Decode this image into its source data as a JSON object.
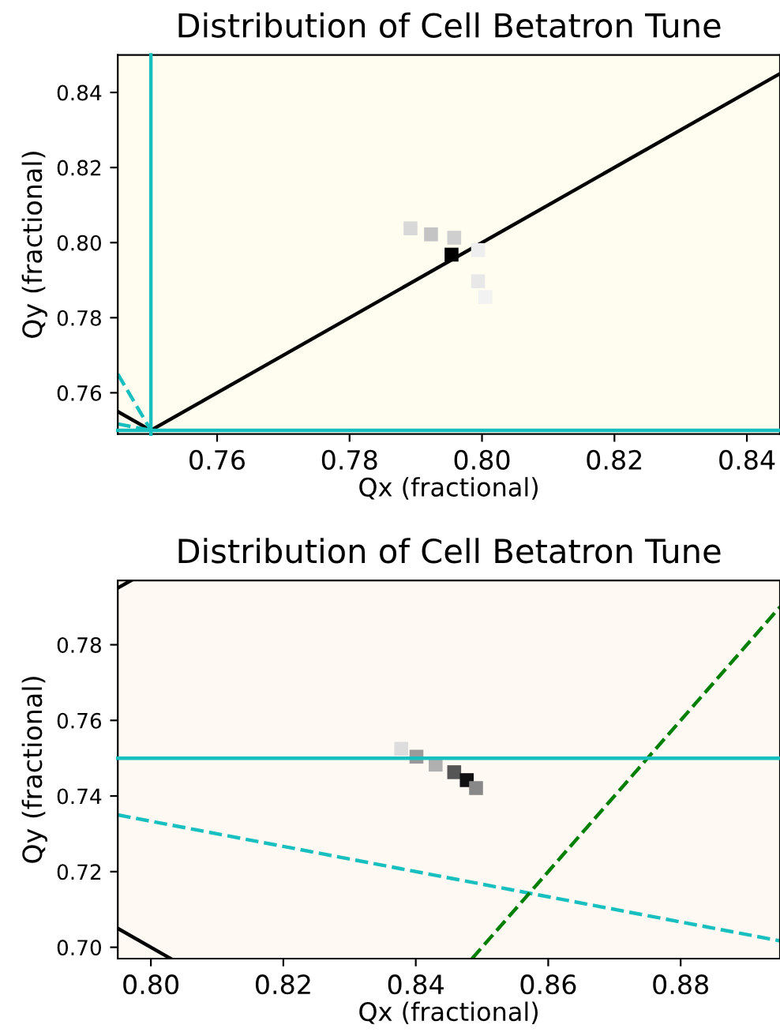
{
  "chart_data": [
    {
      "type": "line",
      "title": "Distribution of Cell Betatron Tune",
      "xlabel": "Qx (fractional)",
      "ylabel": "Qy (fractional)",
      "xlim": [
        0.745,
        0.845
      ],
      "ylim": [
        0.749,
        0.85
      ],
      "xticks": [
        0.76,
        0.78,
        {
          "value": 0.8,
          "label": "0.80"
        },
        0.82,
        0.84
      ],
      "yticks": [
        0.76,
        0.78,
        {
          "value": 0.8,
          "label": "0.80"
        },
        0.82,
        0.84
      ],
      "ref_lines": [
        {
          "axis": "x",
          "value": 0.75,
          "color": "#17bfbf",
          "line_style": "solid"
        },
        {
          "axis": "y",
          "value": 0.75,
          "color": "#17bfbf",
          "line_style": "solid"
        }
      ],
      "series": [
        {
          "color": "#000000",
          "line_style": "solid",
          "x": [
            0.75,
            0.845
          ],
          "values": [
            0.75,
            0.845
          ]
        },
        {
          "color": "#000000",
          "line_style": "solid",
          "x": [
            0.745,
            0.75
          ],
          "values": [
            0.755,
            0.75
          ]
        },
        {
          "color": "#17bfbf",
          "line_style": "dashed",
          "x": [
            0.745,
            0.75
          ],
          "values": [
            0.765,
            0.75
          ]
        },
        {
          "color": "#17bfbf",
          "line_style": "dashed",
          "x": [
            0.745,
            0.75
          ],
          "values": [
            0.7517,
            0.75
          ]
        },
        {
          "type": "scatter",
          "marker": "square",
          "x": [
            0.7892,
            0.7923,
            0.7958,
            0.7994,
            0.7994,
            0.8005,
            0.7954
          ],
          "values": [
            0.8038,
            0.8022,
            0.8013,
            0.798,
            0.7897,
            0.7855,
            0.7968
          ],
          "colors": [
            "#d8d8d8",
            "#c4c4c4",
            "#cfcfcf",
            "#eeeeee",
            "#e8e8e8",
            "#f2f2f2",
            "#000000"
          ]
        }
      ]
    },
    {
      "type": "line",
      "title": "Distribution of Cell Betatron Tune",
      "xlabel": "Qx (fractional)",
      "ylabel": "Qy (fractional)",
      "xlim": [
        0.795,
        0.895
      ],
      "ylim": [
        0.697,
        0.797
      ],
      "xticks": [
        {
          "value": 0.8,
          "label": "0.80"
        },
        0.82,
        0.84,
        0.86,
        0.88
      ],
      "yticks": [
        {
          "value": 0.7,
          "label": "0.70"
        },
        0.72,
        0.74,
        0.76,
        0.78
      ],
      "ref_lines": [
        {
          "axis": "y",
          "value": 0.75,
          "color": "#17bfbf",
          "line_style": "solid"
        }
      ],
      "series": [
        {
          "color": "#000000",
          "line_style": "solid",
          "x": [
            0.795,
            0.797
          ],
          "values": [
            0.795,
            0.797
          ]
        },
        {
          "color": "#000000",
          "line_style": "solid",
          "x": [
            0.795,
            0.803
          ],
          "values": [
            0.705,
            0.697
          ]
        },
        {
          "color": "#17bfbf",
          "line_style": "dashed",
          "x": [
            0.795,
            0.895
          ],
          "values": [
            0.735,
            0.7017
          ]
        },
        {
          "color": "#007f00",
          "line_style": "dashed",
          "x": [
            0.8485,
            0.895
          ],
          "values": [
            0.697,
            0.79
          ]
        },
        {
          "type": "scatter",
          "marker": "square",
          "x": [
            0.8378,
            0.8401,
            0.843,
            0.8458,
            0.8477,
            0.8491
          ],
          "values": [
            0.7525,
            0.7504,
            0.7483,
            0.7463,
            0.7442,
            0.7421
          ],
          "colors": [
            "#dddddd",
            "#9a9a9a",
            "#b0b0b0",
            "#555555",
            "#111111",
            "#888888"
          ]
        }
      ]
    }
  ]
}
